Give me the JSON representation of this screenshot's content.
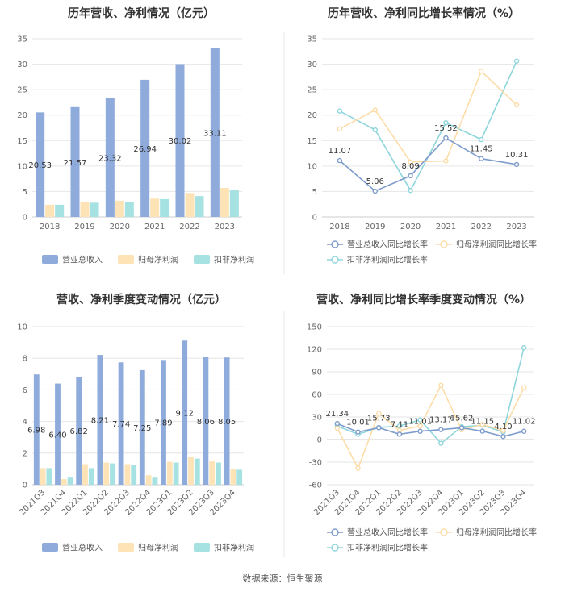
{
  "colors": {
    "revenue": "#8eabdb",
    "net_profit": "#fde3b5",
    "deducted_profit": "#a6e2e2",
    "revenue_line": "#7e9ccb",
    "net_line": "#fcdca7",
    "deducted_line": "#8fd5dc"
  },
  "source": "数据来源：恒生聚源",
  "chart_data": [
    {
      "type": "bar",
      "title": "历年营收、净利情况（亿元）",
      "categories": [
        "2018",
        "2019",
        "2020",
        "2021",
        "2022",
        "2023"
      ],
      "ylim": [
        0,
        35
      ],
      "yticks": [
        0,
        5,
        10,
        15,
        20,
        25,
        30,
        35
      ],
      "series": [
        {
          "name": "营业总收入",
          "color_key": "revenue",
          "values": [
            20.53,
            21.57,
            23.32,
            26.94,
            30.02,
            33.11
          ],
          "labels": [
            "20.53",
            "21.57",
            "23.32",
            "26.94",
            "30.02",
            "33.11"
          ]
        },
        {
          "name": "归母净利润",
          "color_key": "net_profit",
          "values": [
            2.4,
            2.9,
            3.2,
            3.6,
            4.7,
            5.7
          ]
        },
        {
          "name": "扣非净利润",
          "color_key": "deducted_profit",
          "values": [
            2.4,
            2.8,
            3.0,
            3.5,
            4.1,
            5.3
          ]
        }
      ]
    },
    {
      "type": "line",
      "title": "历年营收、净利同比增长率情况（%）",
      "categories": [
        "2018",
        "2019",
        "2020",
        "2021",
        "2022",
        "2023"
      ],
      "ylim": [
        0,
        35
      ],
      "yticks": [
        0,
        5,
        10,
        15,
        20,
        25,
        30,
        35
      ],
      "series": [
        {
          "name": "营业总收入同比增长率",
          "color_key": "revenue_line",
          "values": [
            11.07,
            5.06,
            8.09,
            15.52,
            11.45,
            10.31
          ],
          "labels": [
            "11.07",
            "5.06",
            "8.09",
            "15.52",
            "11.45",
            "10.31"
          ]
        },
        {
          "name": "归母净利润同比增长率",
          "color_key": "net_line",
          "values": [
            17.3,
            21.0,
            10.8,
            11.0,
            28.6,
            22.0
          ]
        },
        {
          "name": "扣非净利润同比增长率",
          "color_key": "deducted_line",
          "values": [
            20.8,
            17.1,
            5.2,
            18.5,
            15.2,
            30.6
          ]
        }
      ]
    },
    {
      "type": "bar",
      "title": "营收、净利季度变动情况（亿元）",
      "categories": [
        "2021Q3",
        "2021Q4",
        "2022Q1",
        "2022Q2",
        "2022Q3",
        "2022Q4",
        "2023Q1",
        "2023Q2",
        "2023Q3",
        "2023Q4"
      ],
      "ylim": [
        0,
        10
      ],
      "yticks": [
        0,
        2,
        4,
        6,
        8,
        10
      ],
      "series": [
        {
          "name": "营业总收入",
          "color_key": "revenue",
          "values": [
            6.98,
            6.4,
            6.82,
            8.21,
            7.74,
            7.25,
            7.89,
            9.12,
            8.06,
            8.05
          ],
          "labels": [
            "6.98",
            "6.40",
            "6.82",
            "8.21",
            "7.74",
            "7.25",
            "7.89",
            "9.12",
            "8.06",
            "8.05"
          ]
        },
        {
          "name": "归母净利润",
          "color_key": "net_profit",
          "values": [
            1.05,
            0.35,
            1.3,
            1.4,
            1.3,
            0.6,
            1.45,
            1.75,
            1.5,
            1.0
          ]
        },
        {
          "name": "扣非净利润",
          "color_key": "deducted_profit",
          "values": [
            1.05,
            0.45,
            1.05,
            1.35,
            1.25,
            0.45,
            1.4,
            1.65,
            1.4,
            0.95
          ]
        }
      ]
    },
    {
      "type": "line",
      "title": "营收、净利同比增长率季度变动情况（%）",
      "categories": [
        "2021Q3",
        "2021Q4",
        "2022Q1",
        "2022Q2",
        "2022Q3",
        "2022Q4",
        "2023Q1",
        "2023Q2",
        "2023Q3",
        "2023Q4"
      ],
      "ylim": [
        -60,
        150
      ],
      "yticks": [
        -60,
        -30,
        0,
        30,
        60,
        90,
        120,
        150
      ],
      "series": [
        {
          "name": "营业总收入同比增长率",
          "color_key": "revenue_line",
          "values": [
            21.34,
            10.01,
            15.73,
            7.11,
            11.01,
            13.17,
            15.62,
            11.15,
            4.1,
            11.02
          ],
          "labels": [
            "21.34",
            "10.01",
            "15.73",
            "7.11",
            "11.01",
            "13.17",
            "15.62",
            "11.15",
            "4.10",
            "11.02"
          ]
        },
        {
          "name": "归母净利润同比增长率",
          "color_key": "net_line",
          "values": [
            15,
            -38,
            35,
            12,
            18,
            72,
            13,
            20,
            12,
            69
          ]
        },
        {
          "name": "扣非净利润同比增长率",
          "color_key": "deducted_line",
          "values": [
            18,
            7,
            16,
            18,
            26,
            -5,
            17,
            19,
            10,
            122
          ]
        }
      ]
    }
  ]
}
